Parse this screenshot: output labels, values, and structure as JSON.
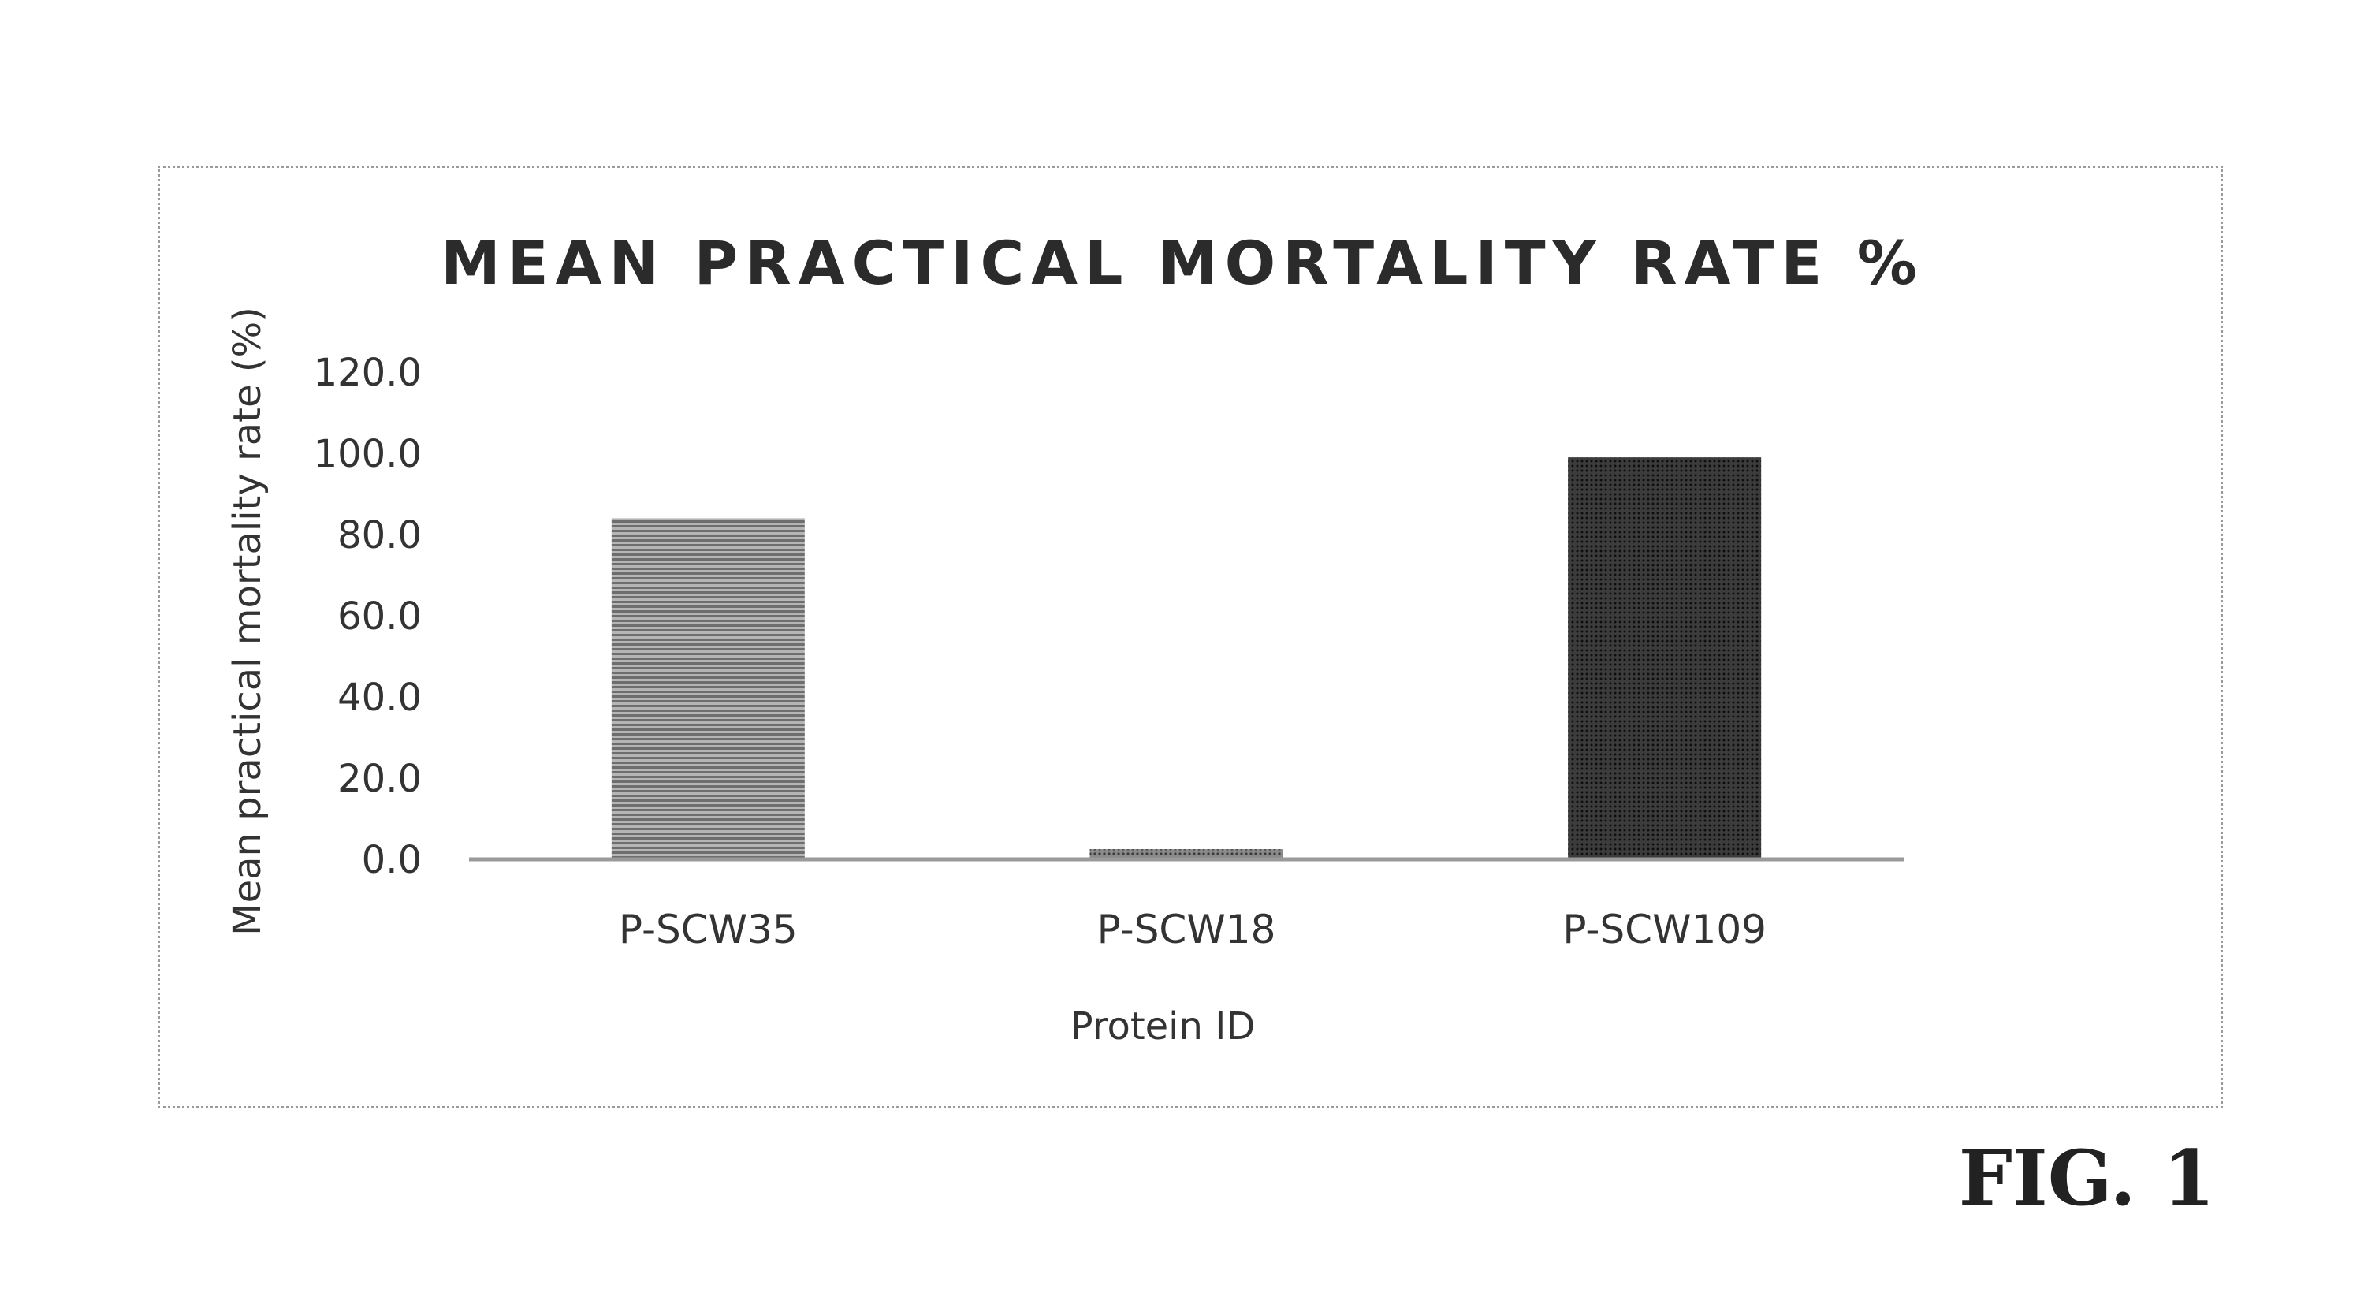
{
  "figure_label": "FIG. 1",
  "chart_data": {
    "type": "bar",
    "title": "MEAN PRACTICAL MORTALITY RATE %",
    "xlabel": "Protein ID",
    "ylabel": "Mean practical mortality rate (%)",
    "categories": [
      "P-SCW35",
      "P-SCW18",
      "P-SCW109"
    ],
    "values": [
      84.0,
      2.5,
      99.0
    ],
    "ylim": [
      0,
      120
    ],
    "yticks": [
      0,
      20,
      40,
      60,
      80,
      100,
      120
    ],
    "ytick_labels": [
      "0.0",
      "20.0",
      "40.0",
      "60.0",
      "80.0",
      "100.0",
      "120.0"
    ],
    "grid": false,
    "legend": "none",
    "bar_colors": [
      "#8c8c8c",
      "#6a6a6a",
      "#2e2e2e"
    ]
  }
}
